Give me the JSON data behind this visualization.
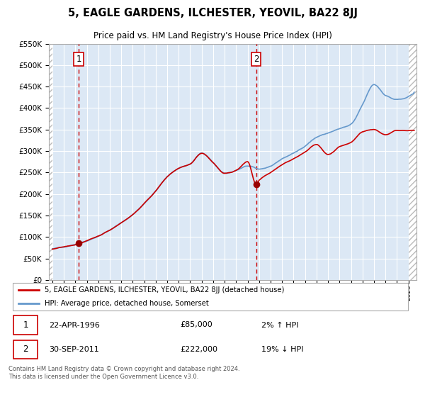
{
  "title": "5, EAGLE GARDENS, ILCHESTER, YEOVIL, BA22 8JJ",
  "subtitle": "Price paid vs. HM Land Registry's House Price Index (HPI)",
  "legend_line1": "5, EAGLE GARDENS, ILCHESTER, YEOVIL, BA22 8JJ (detached house)",
  "legend_line2": "HPI: Average price, detached house, Somerset",
  "annotation1_label": "1",
  "annotation1_date": "22-APR-1996",
  "annotation1_price": "£85,000",
  "annotation1_hpi": "2% ↑ HPI",
  "annotation2_label": "2",
  "annotation2_date": "30-SEP-2011",
  "annotation2_price": "£222,000",
  "annotation2_hpi": "19% ↓ HPI",
  "footnote": "Contains HM Land Registry data © Crown copyright and database right 2024.\nThis data is licensed under the Open Government Licence v3.0.",
  "hpi_color": "#6699cc",
  "price_color": "#cc0000",
  "dashed_line_color": "#cc0000",
  "marker_color": "#990000",
  "ylim": [
    0,
    550000
  ],
  "yticks": [
    0,
    50000,
    100000,
    150000,
    200000,
    250000,
    300000,
    350000,
    400000,
    450000,
    500000,
    550000
  ],
  "plot_bg_color": "#dce8f5",
  "grid_color": "#ffffff",
  "sale1_x": 1996.3,
  "sale1_y": 85000,
  "sale2_x": 2011.75,
  "sale2_y": 222000,
  "xmin": 1993.7,
  "xmax": 2025.7,
  "hatch_xright": 2025.0
}
